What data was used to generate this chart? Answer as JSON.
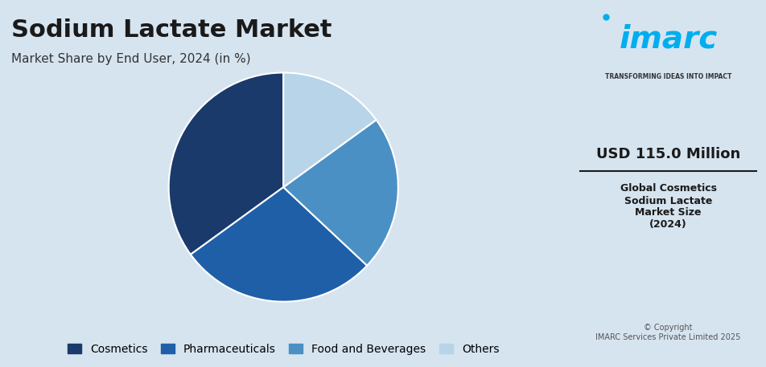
{
  "title": "Sodium Lactate Market",
  "subtitle": "Market Share by End User, 2024 (in %)",
  "segments": [
    "Cosmetics",
    "Pharmaceuticals",
    "Food and Beverages",
    "Others"
  ],
  "values": [
    35,
    28,
    22,
    15
  ],
  "colors": [
    "#1a3a6b",
    "#1e5fa8",
    "#4a90c4",
    "#b8d4e8"
  ],
  "background_color": "#d6e4f0",
  "title_fontsize": 22,
  "subtitle_fontsize": 11,
  "legend_fontsize": 10,
  "right_panel_value": "USD 115.0 Million",
  "right_panel_label": "Global Cosmetics\nSodium Lactate\nMarket Size\n(2024)",
  "copyright": "© Copyright\nIMARC Services Private Limited 2025",
  "imarc_tagline": "TRANSFORMING IDEAS INTO IMPACT",
  "startangle": 90
}
